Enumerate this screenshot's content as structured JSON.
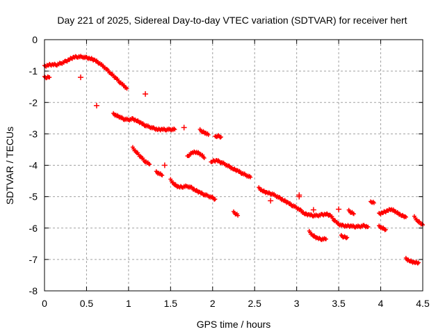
{
  "chart_data": {
    "type": "scatter",
    "title": "Day 221 of 2025, Sidereal Day-to-day VTEC variation (SDTVAR) for receiver hert",
    "xlabel": "GPS time / hours",
    "ylabel": "SDTVAR / TECUs",
    "xlim": [
      0,
      4.5
    ],
    "ylim": [
      -8,
      0
    ],
    "xticks": [
      "0",
      "0.5",
      "1",
      "1.5",
      "2",
      "2.5",
      "3",
      "3.5",
      "4",
      "4.5"
    ],
    "xtick_values": [
      0,
      0.5,
      1,
      1.5,
      2,
      2.5,
      3,
      3.5,
      4,
      4.5
    ],
    "yticks": [
      "0",
      "-1",
      "-2",
      "-3",
      "-4",
      "-5",
      "-6",
      "-7",
      "-8"
    ],
    "ytick_values": [
      0,
      -1,
      -2,
      -3,
      -4,
      -5,
      -6,
      -7,
      -8
    ],
    "grid": true,
    "marker": "+",
    "color": "#ff0000",
    "series": [
      {
        "name": "seg1",
        "points": [
          [
            0.0,
            -0.85
          ],
          [
            0.05,
            -0.8
          ],
          [
            0.1,
            -0.8
          ],
          [
            0.15,
            -0.79
          ],
          [
            0.2,
            -0.75
          ],
          [
            0.25,
            -0.7
          ],
          [
            0.3,
            -0.62
          ],
          [
            0.35,
            -0.56
          ],
          [
            0.4,
            -0.54
          ],
          [
            0.45,
            -0.55
          ],
          [
            0.5,
            -0.58
          ],
          [
            0.55,
            -0.6
          ],
          [
            0.6,
            -0.66
          ],
          [
            0.65,
            -0.74
          ],
          [
            0.7,
            -0.85
          ],
          [
            0.75,
            -0.98
          ],
          [
            0.8,
            -1.1
          ],
          [
            0.85,
            -1.23
          ],
          [
            0.9,
            -1.36
          ],
          [
            0.95,
            -1.48
          ],
          [
            0.98,
            -1.56
          ]
        ]
      },
      {
        "name": "seg1b",
        "points": [
          [
            0.0,
            -1.2
          ],
          [
            0.03,
            -1.2
          ],
          [
            0.06,
            -1.2
          ]
        ]
      },
      {
        "name": "seg2",
        "points": [
          [
            0.82,
            -2.37
          ],
          [
            0.86,
            -2.42
          ],
          [
            0.9,
            -2.47
          ],
          [
            0.95,
            -2.53
          ],
          [
            1.0,
            -2.55
          ],
          [
            1.05,
            -2.53
          ],
          [
            1.1,
            -2.58
          ],
          [
            1.15,
            -2.66
          ],
          [
            1.2,
            -2.73
          ],
          [
            1.25,
            -2.78
          ],
          [
            1.3,
            -2.83
          ],
          [
            1.35,
            -2.86
          ],
          [
            1.4,
            -2.86
          ],
          [
            1.45,
            -2.86
          ],
          [
            1.5,
            -2.86
          ],
          [
            1.55,
            -2.86
          ]
        ]
      },
      {
        "name": "seg3",
        "points": [
          [
            1.05,
            -3.45
          ],
          [
            1.1,
            -3.6
          ],
          [
            1.15,
            -3.75
          ],
          [
            1.2,
            -3.88
          ],
          [
            1.25,
            -3.97
          ]
        ]
      },
      {
        "name": "seg4",
        "points": [
          [
            1.33,
            -4.22
          ],
          [
            1.37,
            -4.27
          ],
          [
            1.4,
            -4.32
          ]
        ]
      },
      {
        "name": "seg5",
        "points": [
          [
            1.5,
            -4.47
          ],
          [
            1.55,
            -4.62
          ],
          [
            1.6,
            -4.7
          ],
          [
            1.65,
            -4.68
          ],
          [
            1.7,
            -4.67
          ],
          [
            1.75,
            -4.72
          ],
          [
            1.8,
            -4.8
          ],
          [
            1.85,
            -4.87
          ],
          [
            1.9,
            -4.93
          ],
          [
            1.95,
            -4.98
          ],
          [
            2.0,
            -5.04
          ],
          [
            2.03,
            -5.08
          ]
        ]
      },
      {
        "name": "seg6",
        "points": [
          [
            1.7,
            -3.73
          ],
          [
            1.73,
            -3.65
          ],
          [
            1.76,
            -3.6
          ],
          [
            1.8,
            -3.58
          ],
          [
            1.84,
            -3.62
          ],
          [
            1.88,
            -3.7
          ],
          [
            1.9,
            -3.77
          ]
        ]
      },
      {
        "name": "seg7",
        "points": [
          [
            1.85,
            -2.88
          ],
          [
            1.88,
            -2.93
          ],
          [
            1.92,
            -2.98
          ],
          [
            1.95,
            -3.03
          ]
        ]
      },
      {
        "name": "seg8",
        "points": [
          [
            2.03,
            -3.1
          ],
          [
            2.06,
            -3.06
          ],
          [
            2.1,
            -3.1
          ]
        ]
      },
      {
        "name": "seg9",
        "points": [
          [
            1.98,
            -3.92
          ],
          [
            2.0,
            -3.87
          ],
          [
            2.05,
            -3.85
          ],
          [
            2.1,
            -3.9
          ],
          [
            2.15,
            -3.97
          ],
          [
            2.2,
            -4.05
          ],
          [
            2.25,
            -4.12
          ],
          [
            2.3,
            -4.18
          ],
          [
            2.35,
            -4.25
          ],
          [
            2.4,
            -4.32
          ],
          [
            2.45,
            -4.38
          ]
        ]
      },
      {
        "name": "seg10",
        "points": [
          [
            2.25,
            -5.5
          ],
          [
            2.28,
            -5.55
          ],
          [
            2.3,
            -5.6
          ]
        ]
      },
      {
        "name": "seg11",
        "points": [
          [
            2.55,
            -4.73
          ],
          [
            2.6,
            -4.82
          ],
          [
            2.65,
            -4.88
          ],
          [
            2.7,
            -4.9
          ],
          [
            2.75,
            -4.97
          ],
          [
            2.8,
            -5.05
          ],
          [
            2.85,
            -5.12
          ],
          [
            2.9,
            -5.2
          ],
          [
            2.95,
            -5.28
          ],
          [
            3.0,
            -5.35
          ],
          [
            3.05,
            -5.45
          ],
          [
            3.1,
            -5.55
          ],
          [
            3.15,
            -5.58
          ],
          [
            3.2,
            -5.6
          ],
          [
            3.25,
            -5.6
          ],
          [
            3.3,
            -5.58
          ],
          [
            3.35,
            -5.55
          ],
          [
            3.4,
            -5.6
          ],
          [
            3.45,
            -5.75
          ],
          [
            3.5,
            -5.88
          ],
          [
            3.55,
            -5.93
          ],
          [
            3.6,
            -5.93
          ],
          [
            3.65,
            -5.94
          ],
          [
            3.7,
            -5.95
          ],
          [
            3.75,
            -5.95
          ],
          [
            3.8,
            -5.93
          ],
          [
            3.85,
            -5.96
          ]
        ]
      },
      {
        "name": "seg12",
        "points": [
          [
            3.15,
            -6.12
          ],
          [
            3.2,
            -6.25
          ],
          [
            3.25,
            -6.33
          ],
          [
            3.3,
            -6.35
          ],
          [
            3.35,
            -6.35
          ]
        ]
      },
      {
        "name": "seg13",
        "points": [
          [
            3.53,
            -6.25
          ],
          [
            3.56,
            -6.28
          ],
          [
            3.6,
            -6.3
          ]
        ]
      },
      {
        "name": "seg14",
        "points": [
          [
            3.62,
            -5.45
          ],
          [
            3.65,
            -5.5
          ],
          [
            3.68,
            -5.55
          ]
        ]
      },
      {
        "name": "seg15",
        "points": [
          [
            3.88,
            -5.18
          ],
          [
            3.9,
            -5.18
          ],
          [
            3.92,
            -5.2
          ]
        ]
      },
      {
        "name": "seg16",
        "points": [
          [
            3.98,
            -5.95
          ],
          [
            4.02,
            -6.0
          ],
          [
            4.06,
            -6.05
          ]
        ]
      },
      {
        "name": "seg17",
        "points": [
          [
            3.98,
            -5.55
          ],
          [
            4.03,
            -5.5
          ],
          [
            4.08,
            -5.45
          ],
          [
            4.12,
            -5.4
          ],
          [
            4.16,
            -5.45
          ],
          [
            4.2,
            -5.52
          ],
          [
            4.25,
            -5.6
          ],
          [
            4.3,
            -5.65
          ]
        ]
      },
      {
        "name": "seg18",
        "points": [
          [
            4.3,
            -6.98
          ],
          [
            4.35,
            -7.05
          ],
          [
            4.4,
            -7.1
          ],
          [
            4.45,
            -7.1
          ]
        ]
      },
      {
        "name": "seg19",
        "points": [
          [
            4.4,
            -5.65
          ],
          [
            4.45,
            -5.8
          ],
          [
            4.5,
            -5.9
          ]
        ]
      },
      {
        "name": "outliers",
        "points": [
          [
            0.43,
            -1.2
          ],
          [
            0.62,
            -2.1
          ],
          [
            1.2,
            -1.73
          ],
          [
            1.43,
            -4.0
          ],
          [
            1.66,
            -2.8
          ],
          [
            2.69,
            -5.13
          ],
          [
            3.03,
            -5.0
          ],
          [
            3.03,
            -4.95
          ],
          [
            3.5,
            -5.4
          ],
          [
            3.2,
            -5.42
          ]
        ]
      }
    ]
  }
}
